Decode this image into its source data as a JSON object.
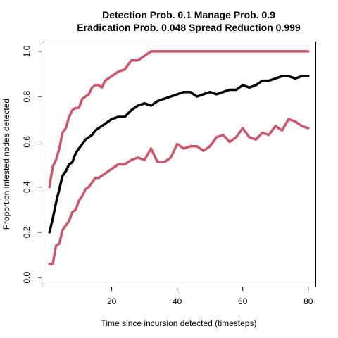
{
  "chart_data": {
    "type": "line",
    "title_line1": "Detection Prob. 0.1 Manage Prob. 0.9",
    "title_line2": "Eradication Prob. 0.048 Spread Reduction 0.999",
    "xlabel": "Time since incursion detected (timesteps)",
    "ylabel": "Proportion infested nodes detected",
    "xlim": [
      -1.2,
      82.2
    ],
    "ylim": [
      -0.04,
      1.04
    ],
    "xticks": [
      20,
      40,
      60,
      80
    ],
    "yticks": [
      0.0,
      0.2,
      0.4,
      0.6,
      0.8,
      1.0
    ],
    "grid": false,
    "colors": {
      "mean": "#000000",
      "bounds": "#d1556a"
    },
    "series": [
      {
        "role": "upper",
        "x": [
          1,
          2,
          3,
          4,
          5,
          6,
          7,
          8,
          9,
          10,
          11,
          12,
          13,
          14,
          15,
          16,
          17,
          18,
          19,
          20,
          22,
          24,
          26,
          28,
          30,
          32,
          35,
          40,
          45,
          50,
          55,
          60,
          65,
          70,
          75,
          80
        ],
        "y": [
          0.4,
          0.49,
          0.52,
          0.57,
          0.64,
          0.66,
          0.71,
          0.74,
          0.75,
          0.75,
          0.79,
          0.8,
          0.81,
          0.84,
          0.85,
          0.85,
          0.84,
          0.87,
          0.88,
          0.89,
          0.91,
          0.92,
          0.96,
          0.96,
          0.98,
          1.0,
          1.0,
          1.0,
          1.0,
          1.0,
          1.0,
          1.0,
          1.0,
          1.0,
          1.0,
          1.0
        ]
      },
      {
        "role": "mean",
        "x": [
          1,
          2,
          3,
          4,
          5,
          6,
          7,
          8,
          9,
          10,
          11,
          12,
          13,
          14,
          15,
          16,
          17,
          18,
          20,
          22,
          24,
          26,
          28,
          30,
          32,
          34,
          36,
          38,
          40,
          42,
          44,
          46,
          48,
          50,
          52,
          54,
          56,
          58,
          60,
          62,
          64,
          66,
          68,
          70,
          72,
          74,
          76,
          78,
          80
        ],
        "y": [
          0.2,
          0.26,
          0.33,
          0.39,
          0.45,
          0.47,
          0.5,
          0.51,
          0.55,
          0.57,
          0.59,
          0.61,
          0.62,
          0.63,
          0.65,
          0.66,
          0.67,
          0.68,
          0.7,
          0.71,
          0.71,
          0.74,
          0.76,
          0.77,
          0.76,
          0.78,
          0.79,
          0.8,
          0.81,
          0.82,
          0.82,
          0.8,
          0.81,
          0.82,
          0.81,
          0.82,
          0.83,
          0.83,
          0.85,
          0.84,
          0.85,
          0.87,
          0.87,
          0.88,
          0.89,
          0.89,
          0.88,
          0.89,
          0.89
        ]
      },
      {
        "role": "lower",
        "x": [
          1,
          2,
          3,
          4,
          5,
          6,
          7,
          8,
          9,
          10,
          11,
          12,
          13,
          14,
          15,
          16,
          17,
          18,
          20,
          22,
          24,
          26,
          28,
          30,
          32,
          34,
          36,
          38,
          40,
          42,
          44,
          46,
          48,
          50,
          52,
          54,
          56,
          58,
          60,
          62,
          64,
          66,
          68,
          70,
          72,
          74,
          76,
          78,
          80
        ],
        "y": [
          0.06,
          0.06,
          0.14,
          0.15,
          0.21,
          0.23,
          0.25,
          0.29,
          0.3,
          0.34,
          0.36,
          0.39,
          0.4,
          0.42,
          0.44,
          0.44,
          0.45,
          0.46,
          0.48,
          0.5,
          0.5,
          0.52,
          0.53,
          0.52,
          0.57,
          0.51,
          0.51,
          0.53,
          0.59,
          0.57,
          0.58,
          0.58,
          0.56,
          0.58,
          0.62,
          0.63,
          0.6,
          0.62,
          0.66,
          0.62,
          0.61,
          0.64,
          0.63,
          0.67,
          0.65,
          0.7,
          0.69,
          0.67,
          0.66
        ]
      }
    ]
  }
}
